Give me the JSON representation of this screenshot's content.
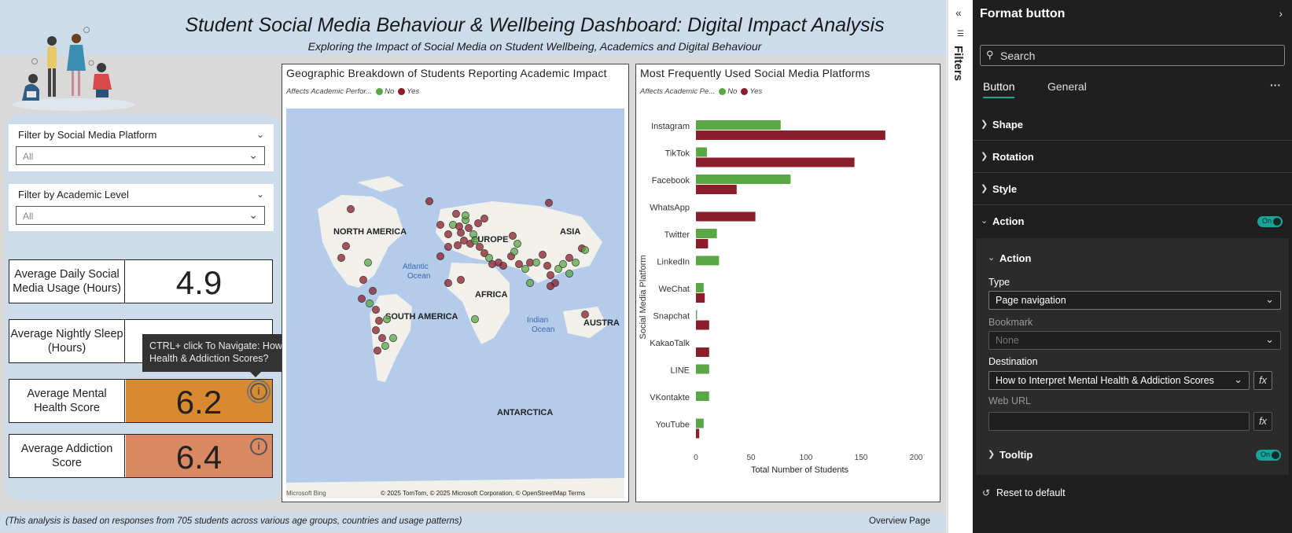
{
  "report": {
    "title": "Student Social Media Behaviour & Wellbeing Dashboard: Digital Impact Analysis",
    "subtitle": "Exploring the Impact of Social Media on Student Wellbeing, Academics and Digital Behaviour",
    "footer_note": "(This analysis is based on responses from 705 students across various age groups, countries and usage patterns)",
    "page_name": "Overview Page"
  },
  "slicers": [
    {
      "title": "Filter by Social Media Platform",
      "value": "All"
    },
    {
      "title": "Filter by Academic Level",
      "value": "All"
    }
  ],
  "kpis": {
    "usage": {
      "label": "Average Daily Social Media Usage (Hours)",
      "value": "4.9"
    },
    "sleep": {
      "label": "Average Nightly Sleep (Hours)",
      "value": ""
    },
    "mental": {
      "label": "Average Mental Health Score",
      "value": "6.2",
      "color": "#d9892f"
    },
    "addiction": {
      "label": "Average Addiction Score",
      "value": "6.4",
      "color": "#d98862"
    }
  },
  "tooltip": {
    "text": "CTRL+ click To Navigate: How to Interpret Mental Health & Addiction Scores?"
  },
  "map": {
    "title": "Geographic Breakdown of Students Reporting Academic Impact",
    "legend_title": "Affects Academic Perfor...",
    "legend_no": "No",
    "legend_yes": "Yes",
    "labels": [
      "NORTH AMERICA",
      "EUROPE",
      "ASIA",
      "Atlantic Ocean",
      "AFRICA",
      "SOUTH AMERICA",
      "Indian Ocean",
      "AUSTRA",
      "ANTARCTICA"
    ],
    "attribution": "© 2025 TomTom, © 2025 Microsoft Corporation, © OpenStreetMap  Terms",
    "bing": "Microsoft Bing"
  },
  "colors": {
    "no": "#5aa845",
    "yes": "#8b1e2b",
    "teal": "#1aa399"
  },
  "chart_data": {
    "type": "bar",
    "orientation": "horizontal",
    "title": "Most Frequently Used Social Media Platforms",
    "legend_title": "Affects Academic Pe...",
    "xlabel": "Total Number of Students",
    "ylabel": "Social Media Platform",
    "xlim": [
      0,
      200
    ],
    "xticks": [
      "0",
      "50",
      "100",
      "150",
      "200"
    ],
    "categories": [
      "Instagram",
      "TikTok",
      "Facebook",
      "WhatsApp",
      "Twitter",
      "LinkedIn",
      "WeChat",
      "Snapchat",
      "KakaoTalk",
      "LINE",
      "VKontakte",
      "YouTube"
    ],
    "series": [
      {
        "name": "No",
        "color": "#5aa845",
        "values": [
          77,
          10,
          86,
          0,
          19,
          21,
          7,
          1,
          0,
          12,
          12,
          7
        ]
      },
      {
        "name": "Yes",
        "color": "#8b1e2b",
        "values": [
          172,
          144,
          37,
          54,
          11,
          0,
          8,
          12,
          12,
          0,
          0,
          3
        ]
      }
    ]
  },
  "format_pane": {
    "title": "Format button",
    "search_placeholder": "Search",
    "tabs": [
      "Button",
      "General"
    ],
    "sections": [
      "Shape",
      "Rotation",
      "Style",
      "Action"
    ],
    "toggle_on": "On",
    "action_card_title": "Action",
    "type_label": "Type",
    "type_value": "Page navigation",
    "bookmark_label": "Bookmark",
    "bookmark_value": "None",
    "destination_label": "Destination",
    "destination_value": "How to Interpret Mental Health & Addiction Scores",
    "weburl_label": "Web URL",
    "weburl_value": "",
    "tooltip_label": "Tooltip",
    "reset_label": "Reset to default"
  },
  "filters_pane": {
    "label": "Filters"
  }
}
